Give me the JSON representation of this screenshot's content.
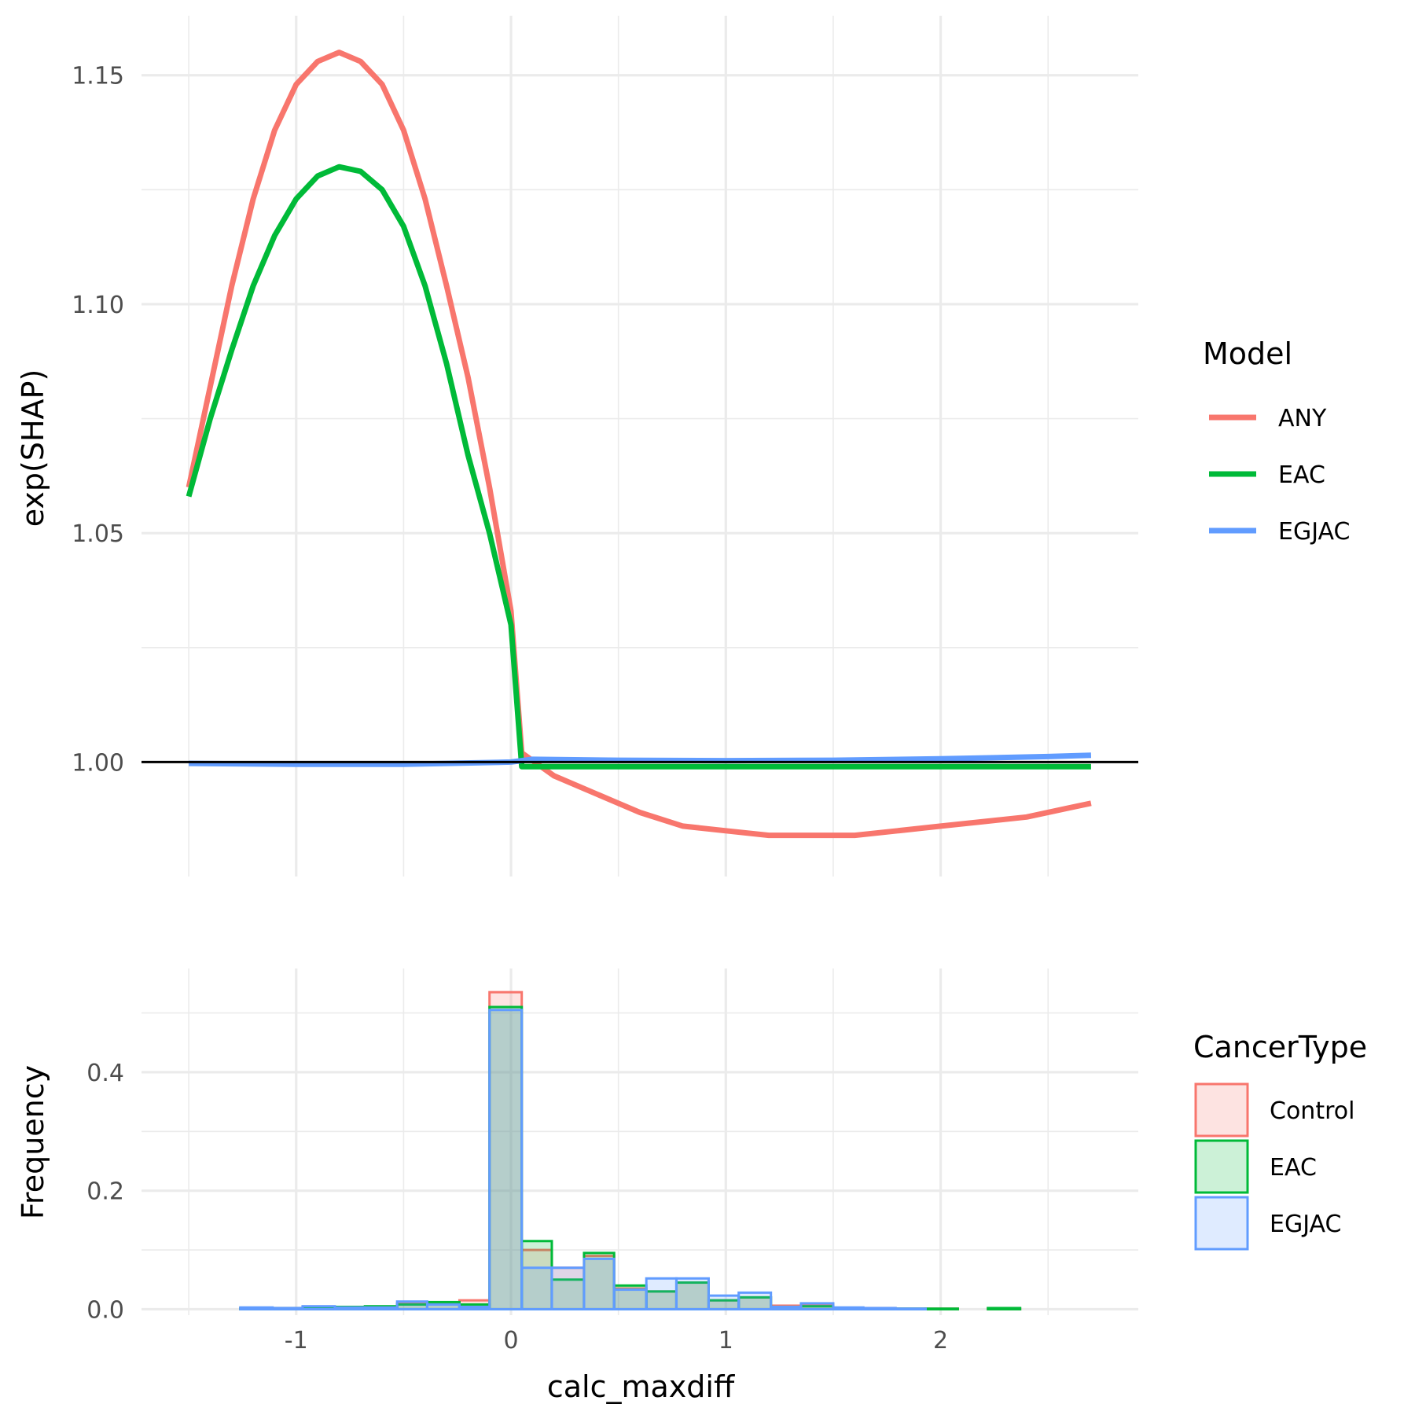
{
  "chart_data": [
    {
      "type": "line",
      "panel": "top",
      "xlabel": "",
      "ylabel": "exp(SHAP)",
      "xlim": [
        -1.72,
        2.92
      ],
      "ylim": [
        0.975,
        1.163
      ],
      "y_ticks": [
        1.0,
        1.05,
        1.1,
        1.15
      ],
      "y_tick_labels": [
        "1.00",
        "1.05",
        "1.10",
        "1.15"
      ],
      "y_minor_ticks": [
        1.025,
        1.075,
        1.125
      ],
      "x_grid": [
        -1.0,
        0.0,
        1.0,
        2.0
      ],
      "x_minor_grid": [
        -1.5,
        -0.5,
        0.5,
        1.5,
        2.5
      ],
      "hline": 1.0,
      "legend_title": "Model",
      "legend_position": "right",
      "series": [
        {
          "name": "ANY",
          "color": "#F8766D",
          "x": [
            -1.5,
            -1.4,
            -1.3,
            -1.2,
            -1.1,
            -1.0,
            -0.9,
            -0.8,
            -0.7,
            -0.6,
            -0.5,
            -0.4,
            -0.3,
            -0.2,
            -0.1,
            0.0,
            0.05,
            0.2,
            0.4,
            0.6,
            0.8,
            1.0,
            1.2,
            1.4,
            1.6,
            1.8,
            2.0,
            2.2,
            2.4,
            2.6,
            2.7
          ],
          "y": [
            1.06,
            1.082,
            1.104,
            1.123,
            1.138,
            1.148,
            1.153,
            1.155,
            1.153,
            1.148,
            1.138,
            1.123,
            1.104,
            1.084,
            1.06,
            1.033,
            1.002,
            0.997,
            0.993,
            0.989,
            0.986,
            0.985,
            0.984,
            0.984,
            0.984,
            0.985,
            0.986,
            0.987,
            0.988,
            0.99,
            0.991
          ]
        },
        {
          "name": "EAC",
          "color": "#00BA38",
          "x": [
            -1.5,
            -1.4,
            -1.3,
            -1.2,
            -1.1,
            -1.0,
            -0.9,
            -0.8,
            -0.7,
            -0.6,
            -0.5,
            -0.4,
            -0.3,
            -0.2,
            -0.1,
            -0.05,
            0.0,
            0.05,
            0.5,
            1.0,
            1.5,
            2.0,
            2.5,
            2.7
          ],
          "y": [
            1.058,
            1.075,
            1.09,
            1.104,
            1.115,
            1.123,
            1.128,
            1.13,
            1.129,
            1.125,
            1.117,
            1.104,
            1.087,
            1.067,
            1.05,
            1.04,
            1.03,
            0.999,
            0.999,
            0.999,
            0.999,
            0.999,
            0.999,
            0.999
          ]
        },
        {
          "name": "EGJAC",
          "color": "#619CFF",
          "x": [
            -1.5,
            -1.0,
            -0.5,
            0.0,
            0.1,
            0.5,
            1.0,
            1.5,
            2.0,
            2.5,
            2.7
          ],
          "y": [
            0.9997,
            0.9995,
            0.9995,
            1.0,
            1.0006,
            1.0004,
            1.0003,
            1.0004,
            1.0007,
            1.0012,
            1.0015
          ]
        }
      ]
    },
    {
      "type": "bar",
      "panel": "bottom",
      "xlabel": "calc_maxdiff",
      "ylabel": "Frequency",
      "xlim": [
        -1.72,
        2.92
      ],
      "ylim": [
        -0.01,
        0.575
      ],
      "x_ticks": [
        -1.0,
        0.0,
        1.0,
        2.0
      ],
      "x_tick_labels": [
        "-1",
        "0",
        "1",
        "2"
      ],
      "x_minor_grid": [
        -1.5,
        -0.5,
        0.5,
        1.5,
        2.5
      ],
      "y_ticks": [
        0.0,
        0.2,
        0.4
      ],
      "y_tick_labels": [
        "0.0",
        "0.2",
        "0.4"
      ],
      "y_minor_ticks": [
        0.1,
        0.3,
        0.5
      ],
      "bin_edges": [
        -1.4,
        -1.26,
        -1.11,
        -0.97,
        -0.82,
        -0.68,
        -0.53,
        -0.39,
        -0.24,
        -0.1,
        0.05,
        0.19,
        0.34,
        0.48,
        0.63,
        0.77,
        0.92,
        1.06,
        1.21,
        1.35,
        1.5,
        1.64,
        1.79,
        1.93,
        2.08,
        2.22,
        2.37,
        2.51,
        2.66
      ],
      "legend_title": "CancerType",
      "legend_position": "right",
      "series": [
        {
          "name": "Control",
          "color": "#F8766D",
          "fill": "#FDE3E1",
          "values": [
            0.0,
            0.002,
            0.002,
            0.004,
            0.003,
            0.004,
            0.01,
            0.01,
            0.015,
            0.535,
            0.1,
            0.07,
            0.09,
            0.035,
            0.03,
            0.045,
            0.015,
            0.02,
            0.006,
            0.008,
            0.002,
            0.002,
            0.001,
            0.001,
            0.0,
            0.001,
            0.0,
            0.0
          ]
        },
        {
          "name": "EAC",
          "color": "#00BA38",
          "fill": "#CCF1D7",
          "values": [
            0.0,
            0.001,
            0.002,
            0.003,
            0.004,
            0.005,
            0.008,
            0.012,
            0.008,
            0.51,
            0.115,
            0.05,
            0.095,
            0.04,
            0.03,
            0.045,
            0.015,
            0.02,
            0.004,
            0.005,
            0.002,
            0.001,
            0.001,
            0.001,
            0.0,
            0.002,
            0.0,
            0.0
          ]
        },
        {
          "name": "EGJAC",
          "color": "#619CFF",
          "fill": "#DFEBFF",
          "values": [
            0.0,
            0.003,
            0.002,
            0.005,
            0.003,
            0.003,
            0.013,
            0.008,
            0.004,
            0.505,
            0.07,
            0.07,
            0.085,
            0.033,
            0.052,
            0.052,
            0.023,
            0.028,
            0.004,
            0.01,
            0.003,
            0.002,
            0.001,
            0.0,
            0.0,
            0.0,
            0.0,
            0.0
          ]
        }
      ]
    }
  ]
}
